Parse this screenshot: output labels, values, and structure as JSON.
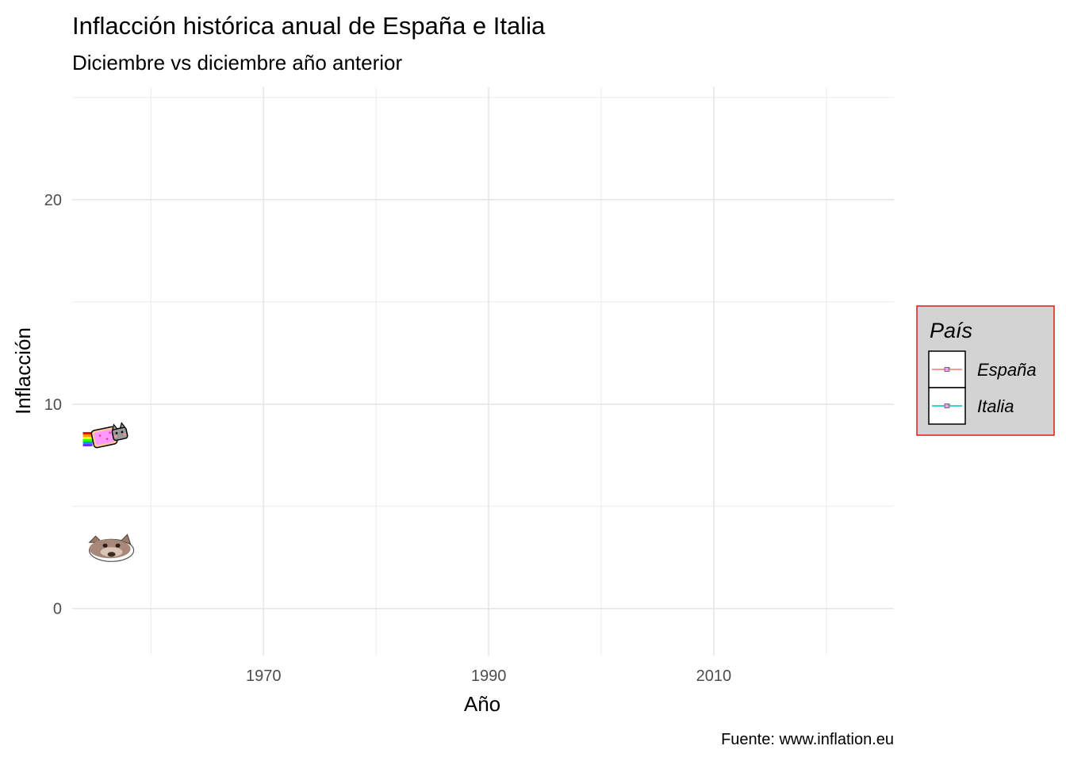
{
  "chart_data": {
    "type": "line",
    "title": "Inflacción histórica anual de España e Italia",
    "subtitle": "Diciembre vs diciembre año anterior",
    "xlabel": "Año",
    "ylabel": "Inflacción",
    "caption": "Fuente: www.inflation.eu",
    "xlim": [
      1953,
      2026
    ],
    "ylim": [
      -2.3,
      25.5
    ],
    "x_ticks": [
      1970,
      1990,
      2010
    ],
    "x_tick_labels": [
      "1970",
      "1990",
      "2010"
    ],
    "x_minor_ticks": [
      1960,
      1980,
      2000,
      2020
    ],
    "y_ticks": [
      0,
      10,
      20
    ],
    "y_tick_labels": [
      "0",
      "10",
      "20"
    ],
    "y_minor_ticks": [
      5,
      15,
      25
    ],
    "grid": true,
    "legend": {
      "title": "País",
      "position": "right",
      "border_color": "#e31a1c",
      "background": "#d3d3d3",
      "entries": [
        {
          "label": "España",
          "color": "#f8766d"
        },
        {
          "label": "Italia",
          "color": "#00bfc4"
        }
      ]
    },
    "series": [
      {
        "name": "España",
        "color": "#f8766d",
        "marker": "nyan-cat-icon",
        "x": [
          1956
        ],
        "y": [
          8.4
        ]
      },
      {
        "name": "Italia",
        "color": "#00bfc4",
        "marker": "pop-cat-icon",
        "x": [
          1956
        ],
        "y": [
          3.0
        ]
      }
    ]
  }
}
